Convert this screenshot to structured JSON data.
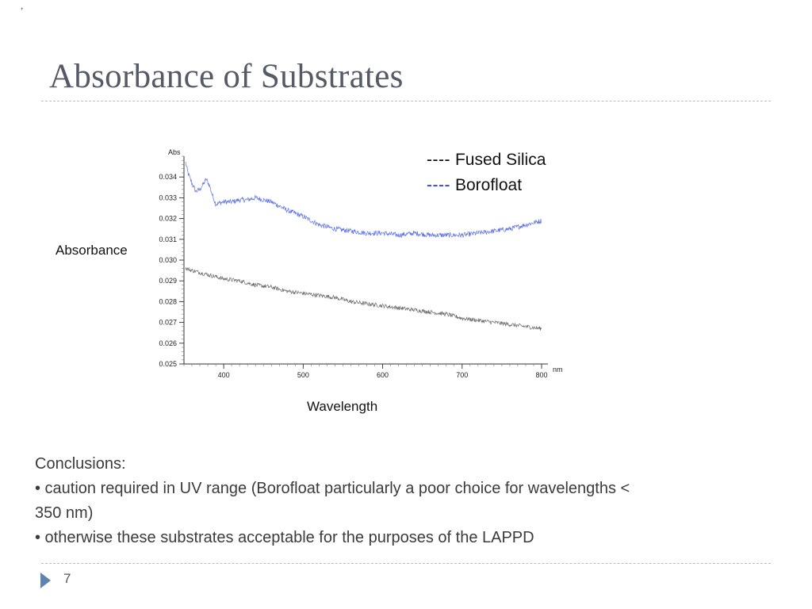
{
  "corner_mark": ",",
  "slide": {
    "title": "Absorbance of Substrates",
    "y_side_label": "Absorbance",
    "x_side_label": "Wavelength",
    "page_number": "7"
  },
  "legend": [
    {
      "dash": "----",
      "label": "Fused Silica",
      "color": "#000000"
    },
    {
      "dash": "----",
      "label": "Borofloat",
      "color": "#1a2fd8"
    }
  ],
  "conclusions": {
    "heading": "Conclusions:",
    "bullets": [
      "• caution required in UV range (Borofloat particularly a poor choice for wavelengths < 350 nm)",
      "• otherwise these substrates acceptable for the purposes of the LAPPD"
    ]
  },
  "chart_data": {
    "type": "line",
    "ylabel": "Abs",
    "xlabel": "nm",
    "xlim": [
      350,
      800
    ],
    "ylim": [
      0.025,
      0.035
    ],
    "x_ticks": [
      400,
      500,
      600,
      700,
      800
    ],
    "y_ticks": [
      0.025,
      0.026,
      0.027,
      0.028,
      0.029,
      0.03,
      0.031,
      0.032,
      0.033,
      0.034
    ],
    "grid": false,
    "legend_position": "top-right",
    "series": [
      {
        "name": "Borofloat",
        "color": "#5a6ee8",
        "x": [
          352,
          355,
          360,
          365,
          370,
          375,
          378,
          382,
          386,
          390,
          400,
          410,
          420,
          430,
          440,
          450,
          460,
          470,
          480,
          500,
          520,
          540,
          560,
          580,
          600,
          620,
          640,
          660,
          680,
          700,
          720,
          740,
          760,
          780,
          800
        ],
        "y": [
          0.0347,
          0.0342,
          0.0337,
          0.0333,
          0.0334,
          0.0337,
          0.0339,
          0.0336,
          0.0331,
          0.0327,
          0.0328,
          0.0328,
          0.0329,
          0.0329,
          0.033,
          0.0329,
          0.0328,
          0.0326,
          0.0324,
          0.0321,
          0.0317,
          0.0315,
          0.0314,
          0.0313,
          0.0313,
          0.0312,
          0.0313,
          0.0312,
          0.0312,
          0.0312,
          0.0313,
          0.0314,
          0.0315,
          0.0317,
          0.0319
        ]
      },
      {
        "name": "Fused Silica",
        "color": "#6a6a6a",
        "x": [
          352,
          360,
          370,
          380,
          390,
          400,
          420,
          440,
          460,
          480,
          500,
          520,
          540,
          560,
          580,
          600,
          620,
          640,
          660,
          680,
          700,
          720,
          740,
          760,
          780,
          800
        ],
        "y": [
          0.0296,
          0.0295,
          0.0294,
          0.0293,
          0.0292,
          0.0291,
          0.029,
          0.0288,
          0.0287,
          0.0285,
          0.0284,
          0.0283,
          0.0282,
          0.028,
          0.0279,
          0.0278,
          0.0277,
          0.0276,
          0.0275,
          0.0274,
          0.0272,
          0.0271,
          0.027,
          0.0269,
          0.0268,
          0.0267
        ]
      }
    ]
  }
}
